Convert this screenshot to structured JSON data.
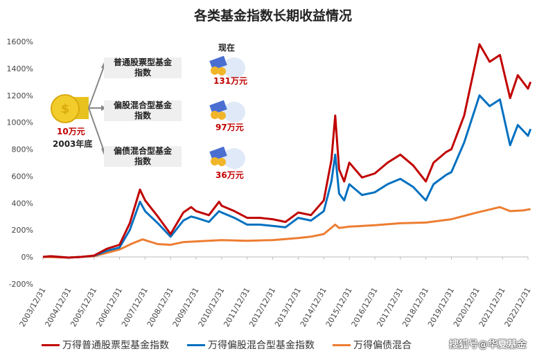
{
  "chart_data": {
    "type": "line",
    "title": "各类基金指数长期收益情况",
    "ylim": [
      -200,
      1600
    ],
    "yticks": [
      -200,
      0,
      200,
      400,
      600,
      800,
      1000,
      1200,
      1400,
      1600
    ],
    "ytick_labels": [
      "-200%",
      "0%",
      "200%",
      "400%",
      "600%",
      "800%",
      "1000%",
      "1200%",
      "1400%",
      "1600%"
    ],
    "xtick_labels": [
      "2003/12/31",
      "2004/12/31",
      "2005/12/31",
      "2006/12/31",
      "2007/12/31",
      "2008/12/31",
      "2009/12/31",
      "2010/12/31",
      "2011/12/31",
      "2012/12/31",
      "2013/12/31",
      "2014/12/31",
      "2015/12/31",
      "2016/12/31",
      "2017/12/31",
      "2018/12/31",
      "2019/12/31",
      "2020/12/31",
      "2021/12/31",
      "2022/12/31"
    ],
    "grid": false,
    "legend_placement": "bottom",
    "series": [
      {
        "name": "万得普通股票型基金指数",
        "color": "#c00000",
        "x": [
          2004.0,
          2004.3,
          2005.0,
          2005.5,
          2006.0,
          2006.5,
          2007.0,
          2007.4,
          2007.8,
          2008.0,
          2008.5,
          2009.0,
          2009.5,
          2009.8,
          2010.0,
          2010.5,
          2010.9,
          2011.0,
          2011.5,
          2012.0,
          2012.5,
          2013.0,
          2013.5,
          2014.0,
          2014.5,
          2015.0,
          2015.3,
          2015.45,
          2015.6,
          2015.8,
          2016.0,
          2016.5,
          2017.0,
          2017.5,
          2018.0,
          2018.5,
          2019.0,
          2019.3,
          2019.8,
          2020.0,
          2020.5,
          2021.1,
          2021.5,
          2021.9,
          2022.3,
          2022.6,
          2023.0,
          2023.1
        ],
        "y": [
          0,
          5,
          -5,
          0,
          10,
          60,
          90,
          250,
          500,
          420,
          300,
          170,
          330,
          370,
          340,
          310,
          410,
          380,
          340,
          290,
          290,
          280,
          260,
          330,
          310,
          420,
          720,
          1050,
          650,
          560,
          700,
          590,
          620,
          700,
          760,
          680,
          560,
          700,
          780,
          800,
          1050,
          1580,
          1450,
          1500,
          1180,
          1350,
          1250,
          1300
        ]
      },
      {
        "name": "万得偏股混合型基金指数",
        "color": "#0070c0",
        "x": [
          2004.0,
          2004.3,
          2005.0,
          2005.5,
          2006.0,
          2006.5,
          2007.0,
          2007.4,
          2007.8,
          2008.0,
          2008.5,
          2009.0,
          2009.5,
          2009.8,
          2010.0,
          2010.5,
          2010.9,
          2011.0,
          2011.5,
          2012.0,
          2012.5,
          2013.0,
          2013.5,
          2014.0,
          2014.5,
          2015.0,
          2015.3,
          2015.45,
          2015.6,
          2015.8,
          2016.0,
          2016.5,
          2017.0,
          2017.5,
          2018.0,
          2018.5,
          2019.0,
          2019.3,
          2019.8,
          2020.0,
          2020.5,
          2021.1,
          2021.5,
          2021.9,
          2022.3,
          2022.6,
          2023.0,
          2023.1
        ],
        "y": [
          0,
          5,
          -5,
          0,
          8,
          45,
          70,
          200,
          410,
          340,
          250,
          150,
          270,
          300,
          290,
          260,
          340,
          330,
          290,
          240,
          240,
          230,
          220,
          290,
          270,
          340,
          560,
          760,
          470,
          420,
          540,
          460,
          480,
          540,
          580,
          520,
          420,
          540,
          610,
          630,
          850,
          1200,
          1120,
          1170,
          830,
          980,
          900,
          950
        ]
      },
      {
        "name": "万得偏债混合",
        "color": "#ed7d31",
        "x": [
          2004.0,
          2005.0,
          2006.0,
          2006.5,
          2007.0,
          2007.5,
          2007.9,
          2008.5,
          2009.0,
          2009.5,
          2010.0,
          2011.0,
          2012.0,
          2013.0,
          2014.0,
          2014.5,
          2015.0,
          2015.45,
          2015.6,
          2016.0,
          2017.0,
          2018.0,
          2019.0,
          2020.0,
          2021.0,
          2021.9,
          2022.3,
          2022.8,
          2023.1
        ],
        "y": [
          0,
          -5,
          5,
          30,
          55,
          100,
          130,
          95,
          90,
          110,
          115,
          125,
          120,
          125,
          140,
          150,
          170,
          240,
          215,
          225,
          235,
          250,
          255,
          280,
          330,
          370,
          340,
          345,
          355
        ]
      }
    ],
    "annotation": {
      "start_amount": "10万元",
      "start_date": "2003年底",
      "now_label": "现在",
      "branches": [
        {
          "label_line1": "普通股票型基金",
          "label_line2": "指数",
          "amount": "131万元"
        },
        {
          "label_line1": "偏股混合型基金",
          "label_line2": "指数",
          "amount": "97万元"
        },
        {
          "label_line1": "偏债混合型基金",
          "label_line2": "指数",
          "amount": "36万元"
        }
      ]
    }
  },
  "watermark": "搜狐号@华夏基金"
}
